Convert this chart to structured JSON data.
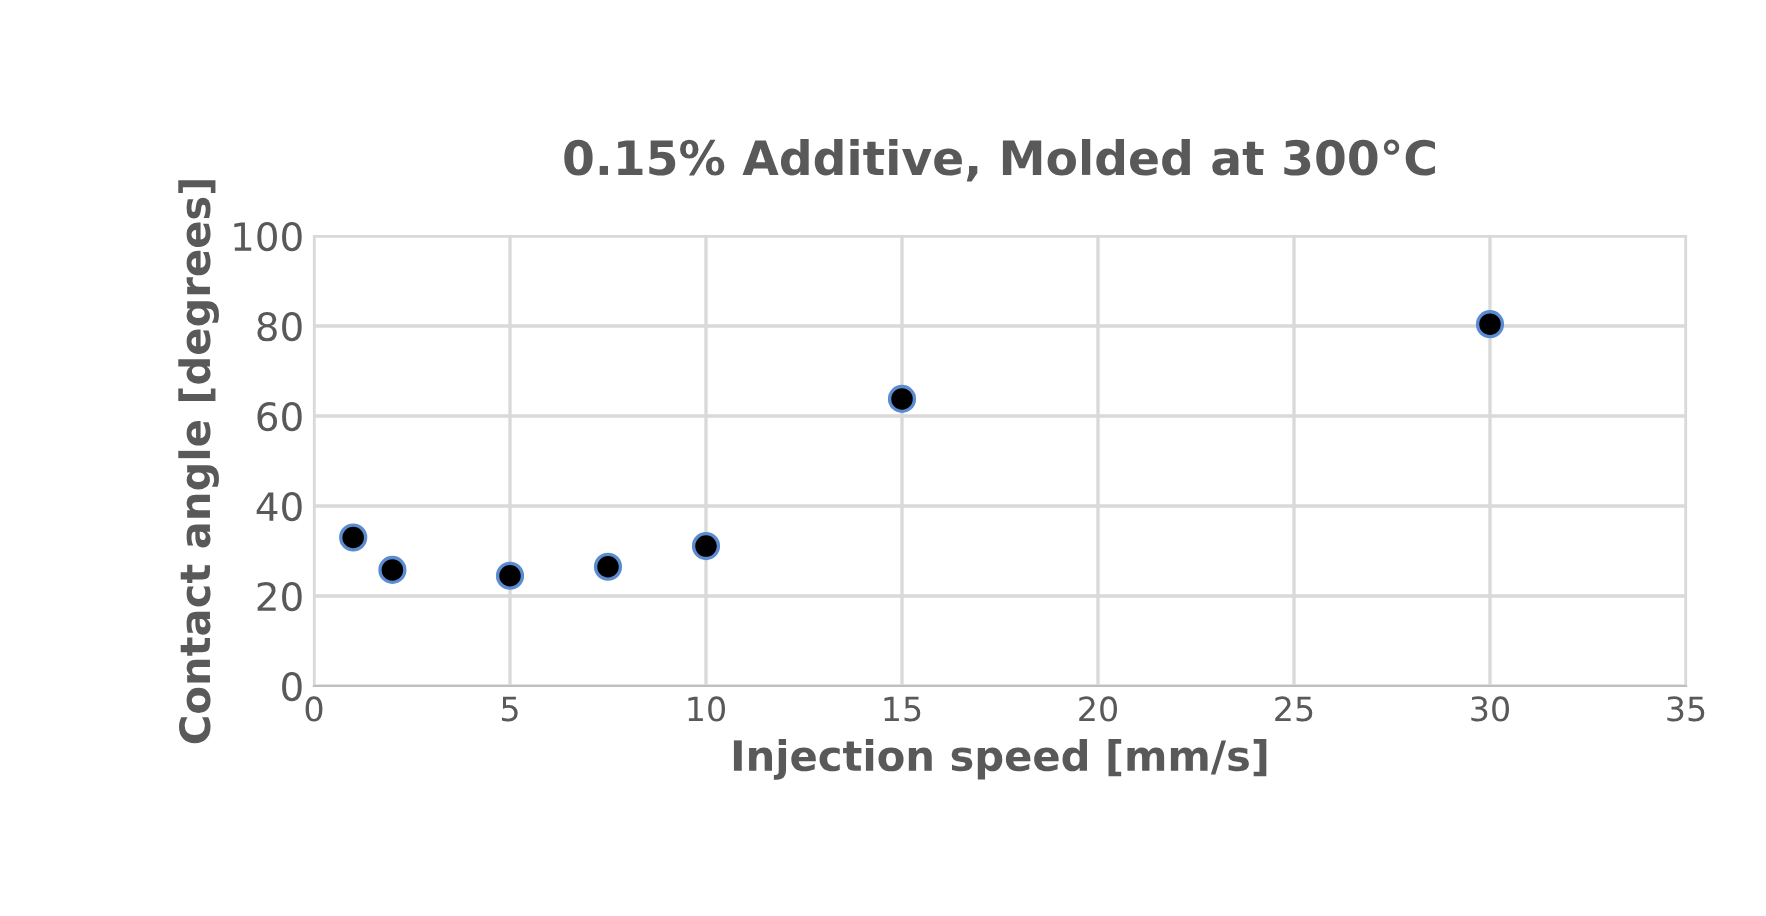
{
  "chart_data": {
    "type": "scatter",
    "title": "0.15% Additive, Molded at 300°C",
    "xlabel": "Injection speed [mm/s]",
    "ylabel": "Contact angle [degrees]",
    "series": [
      {
        "color": "#000000",
        "x": [
          1,
          2,
          5,
          7.5,
          10,
          15,
          30
        ],
        "values": [
          33,
          25.8,
          24.5,
          26.5,
          31.1,
          63.8,
          80.4
        ]
      }
    ],
    "xlim": [
      0,
      35
    ],
    "xticks": [
      0,
      5,
      10,
      15,
      20,
      25,
      30,
      35
    ],
    "ylim": [
      0,
      100
    ],
    "yticks": [
      0,
      20,
      40,
      60,
      80,
      100
    ],
    "grid": true,
    "marker": "circle"
  }
}
